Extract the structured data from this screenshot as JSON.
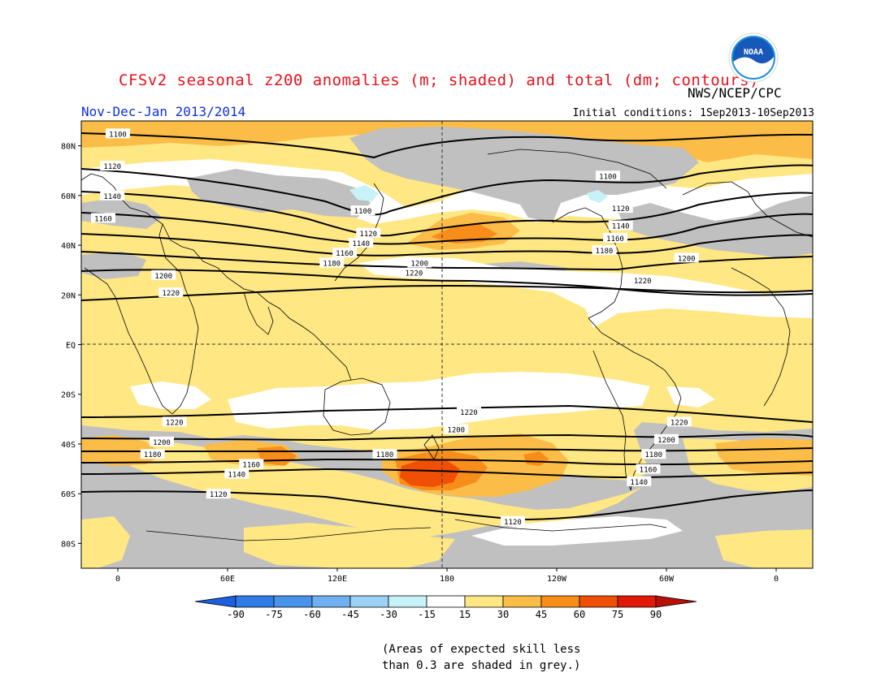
{
  "header": {
    "title": "CFSv2 seasonal z200 anomalies (m; shaded) and total (dm; contours)",
    "agency": "NWS/NCEP/CPC",
    "period": "Nov-Dec-Jan 2013/2014",
    "initial_conditions": "Initial conditions: 1Sep2013-10Sep2013",
    "logo_text": "NOAA"
  },
  "colors": {
    "grey_skill": "#c0c0c0",
    "white_neutral": "#ffffff",
    "light_yellow": "#ffe784",
    "yellow_orange": "#fbbd47",
    "orange": "#f88d1a",
    "red_orange": "#f05006",
    "light_cyan": "#c7f2f8"
  },
  "map": {
    "lat_labels": [
      "80N",
      "60N",
      "40N",
      "20N",
      "EQ",
      "20S",
      "40S",
      "60S",
      "80S"
    ],
    "lon_labels": [
      "0",
      "60E",
      "120E",
      "180",
      "120W",
      "60W",
      "0"
    ],
    "contour_labels": [
      {
        "text": "1100",
        "lon": 0,
        "lat": 85
      },
      {
        "text": "1120",
        "lon": -3,
        "lat": 72
      },
      {
        "text": "1140",
        "lon": -3,
        "lat": 60
      },
      {
        "text": "1160",
        "lon": -8,
        "lat": 51
      },
      {
        "text": "1100",
        "lon": 134,
        "lat": 54
      },
      {
        "text": "1120",
        "lon": 137,
        "lat": 45
      },
      {
        "text": "1140",
        "lon": 133,
        "lat": 41
      },
      {
        "text": "1160",
        "lon": 124,
        "lat": 37
      },
      {
        "text": "1180",
        "lon": 117,
        "lat": 33
      },
      {
        "text": "1200",
        "lon": 165,
        "lat": 33
      },
      {
        "text": "1220",
        "lon": 162,
        "lat": 29
      },
      {
        "text": "1200",
        "lon": 25,
        "lat": 28
      },
      {
        "text": "1220",
        "lon": 29,
        "lat": 21
      },
      {
        "text": "1100",
        "lon": 268,
        "lat": 68
      },
      {
        "text": "1120",
        "lon": 275,
        "lat": 55
      },
      {
        "text": "1140",
        "lon": 275,
        "lat": 48
      },
      {
        "text": "1160",
        "lon": 272,
        "lat": 43
      },
      {
        "text": "1180",
        "lon": 266,
        "lat": 38
      },
      {
        "text": "1200",
        "lon": 311,
        "lat": 35
      },
      {
        "text": "1220",
        "lon": 287,
        "lat": 26
      },
      {
        "text": "1220",
        "lon": 31,
        "lat": -31
      },
      {
        "text": "1200",
        "lon": 24,
        "lat": -39
      },
      {
        "text": "1180",
        "lon": 19,
        "lat": -44
      },
      {
        "text": "1160",
        "lon": 73,
        "lat": -48
      },
      {
        "text": "1140",
        "lon": 65,
        "lat": -52
      },
      {
        "text": "1120",
        "lon": 55,
        "lat": -60
      },
      {
        "text": "1180",
        "lon": 146,
        "lat": -44
      },
      {
        "text": "1200",
        "lon": 185,
        "lat": -34
      },
      {
        "text": "1220",
        "lon": 192,
        "lat": -27
      },
      {
        "text": "1120",
        "lon": 216,
        "lat": -71
      },
      {
        "text": "1220",
        "lon": 307,
        "lat": -31
      },
      {
        "text": "1200",
        "lon": 300,
        "lat": -38
      },
      {
        "text": "1180",
        "lon": 293,
        "lat": -44
      },
      {
        "text": "1160",
        "lon": 290,
        "lat": -50
      },
      {
        "text": "1140",
        "lon": 285,
        "lat": -55
      }
    ]
  },
  "colorbar": {
    "labels": [
      "-90",
      "-75",
      "-60",
      "-45",
      "-30",
      "-15",
      "15",
      "30",
      "45",
      "60",
      "75",
      "90"
    ],
    "colors": [
      "#1c5fe0",
      "#2f7ce6",
      "#4892ea",
      "#6eb0f0",
      "#9bd2f6",
      "#c7f2f8",
      "#ffffff",
      "#ffe784",
      "#fbbd47",
      "#f88d1a",
      "#f05006",
      "#e11a08",
      "#b81006"
    ]
  },
  "footnote": {
    "line1": "(Areas of expected skill less",
    "line2": "than 0.3 are shaded in grey.)"
  }
}
